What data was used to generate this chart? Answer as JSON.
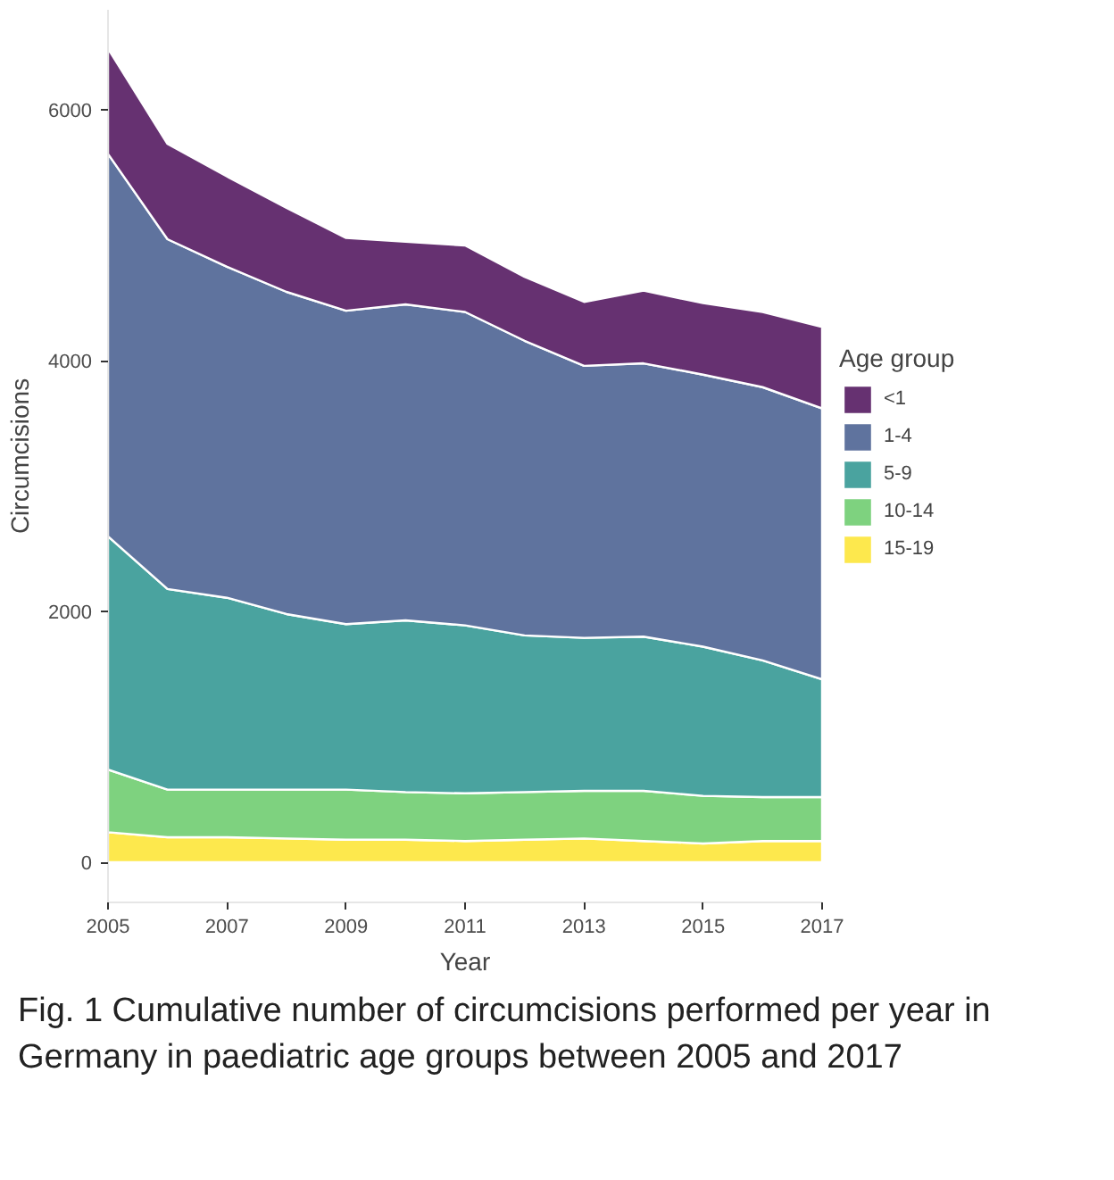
{
  "chart_data": {
    "type": "area",
    "stacked": true,
    "xlabel": "Year",
    "ylabel": "Circumcisions",
    "legend_title": "Age group",
    "legend": "right",
    "grid": false,
    "x": [
      2005,
      2006,
      2007,
      2008,
      2009,
      2010,
      2011,
      2012,
      2013,
      2014,
      2015,
      2016,
      2017
    ],
    "xlim": [
      2005,
      2017
    ],
    "xticks": [
      2005,
      2007,
      2009,
      2011,
      2013,
      2015,
      2017
    ],
    "ylim": [
      -320,
      6800
    ],
    "yticks": [
      0,
      2000,
      4000,
      6000
    ],
    "series": [
      {
        "name": "15-19",
        "color": "#fde84d",
        "values": [
          240,
          200,
          200,
          190,
          180,
          180,
          170,
          180,
          190,
          170,
          150,
          170,
          170
        ]
      },
      {
        "name": "10-14",
        "color": "#7ed27f",
        "values": [
          500,
          380,
          380,
          390,
          400,
          380,
          380,
          380,
          380,
          400,
          380,
          350,
          350
        ]
      },
      {
        "name": "5-9",
        "color": "#4aa39f",
        "values": [
          1860,
          1600,
          1530,
          1400,
          1320,
          1370,
          1340,
          1250,
          1220,
          1230,
          1190,
          1090,
          940
        ]
      },
      {
        "name": "1-4",
        "color": "#5f739e",
        "values": [
          3050,
          2790,
          2640,
          2570,
          2500,
          2520,
          2500,
          2350,
          2170,
          2180,
          2170,
          2180,
          2160
        ]
      },
      {
        "name": "<1",
        "color": "#663171",
        "values": [
          840,
          760,
          720,
          670,
          580,
          500,
          530,
          510,
          510,
          580,
          570,
          600,
          650
        ]
      }
    ],
    "annotations": [
      "Fig. 1  Cumulative number of circumcisions performed per year in Germany in paediatric age groups between 2005 and 2017"
    ]
  }
}
